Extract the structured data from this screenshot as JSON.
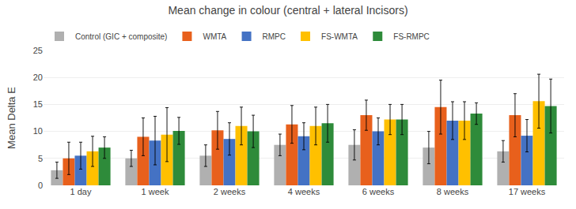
{
  "chart_data": {
    "type": "bar",
    "title": "Mean change in colour (central + lateral Incisors)",
    "ylabel": "Mean Delta E",
    "categories": [
      "1 day",
      "1 week",
      "2 weeks",
      "4 weeks",
      "6 weeks",
      "8 weeks",
      "17 weeks"
    ],
    "series": [
      {
        "name": "Control (GIC + composite)",
        "color": "#b0b0b0",
        "values": [
          2.8,
          5.0,
          5.5,
          7.5,
          7.5,
          7.0,
          6.3
        ],
        "errors": [
          1.5,
          1.5,
          2.0,
          2.0,
          2.8,
          3.0,
          2.0
        ]
      },
      {
        "name": "WMTA",
        "color": "#e8601c",
        "values": [
          5.0,
          9.0,
          10.2,
          11.3,
          13.0,
          14.5,
          13.0
        ],
        "errors": [
          3.0,
          3.5,
          3.5,
          3.5,
          2.8,
          5.0,
          4.0
        ]
      },
      {
        "name": "RMPC",
        "color": "#4472c4",
        "values": [
          5.5,
          8.3,
          8.6,
          9.1,
          10.0,
          12.0,
          9.2
        ],
        "errors": [
          2.5,
          4.5,
          3.0,
          2.5,
          2.5,
          3.5,
          3.0
        ]
      },
      {
        "name": "FS-WMTA",
        "color": "#ffc000",
        "values": [
          6.3,
          9.4,
          11.0,
          11.0,
          12.2,
          12.0,
          15.6
        ],
        "errors": [
          2.8,
          5.0,
          3.5,
          3.5,
          2.8,
          3.5,
          5.0
        ]
      },
      {
        "name": "FS-RMPC",
        "color": "#2e8b3a",
        "values": [
          7.0,
          10.1,
          10.0,
          11.5,
          12.2,
          13.3,
          14.7
        ],
        "errors": [
          2.0,
          2.5,
          3.0,
          3.5,
          2.8,
          2.0,
          5.0
        ]
      }
    ],
    "ylim": [
      0,
      25
    ],
    "yticks": [
      0,
      5,
      10,
      15,
      20,
      25
    ],
    "grid": true,
    "legend": "top"
  }
}
